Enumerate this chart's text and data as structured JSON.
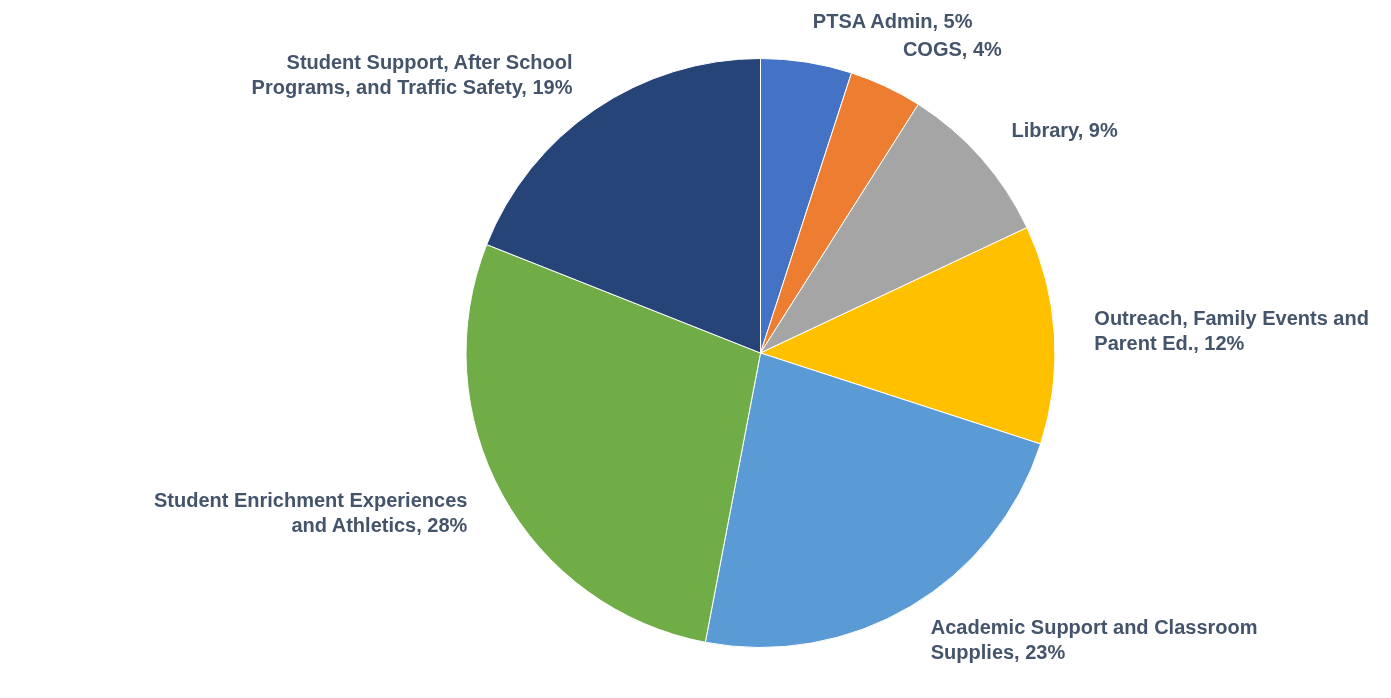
{
  "chart_data": {
    "type": "pie",
    "categories": [
      "PTSA Admin",
      "COGS",
      "Library",
      "Outreach, Family Events and Parent Ed.",
      "Academic Support and Classroom Supplies",
      "Student Enrichment Experiences and Athletics",
      "Student Support, After School Programs, and Traffic Safety"
    ],
    "values": [
      5,
      4,
      9,
      12,
      23,
      28,
      19
    ],
    "value_labels": [
      "5%",
      "4%",
      "9%",
      "12%",
      "23%",
      "28%",
      "19%"
    ],
    "colors": [
      "#4472c4",
      "#ed7d31",
      "#a5a5a5",
      "#ffc000",
      "#5b9bd5",
      "#70ad47",
      "#264478"
    ],
    "legend": false
  }
}
